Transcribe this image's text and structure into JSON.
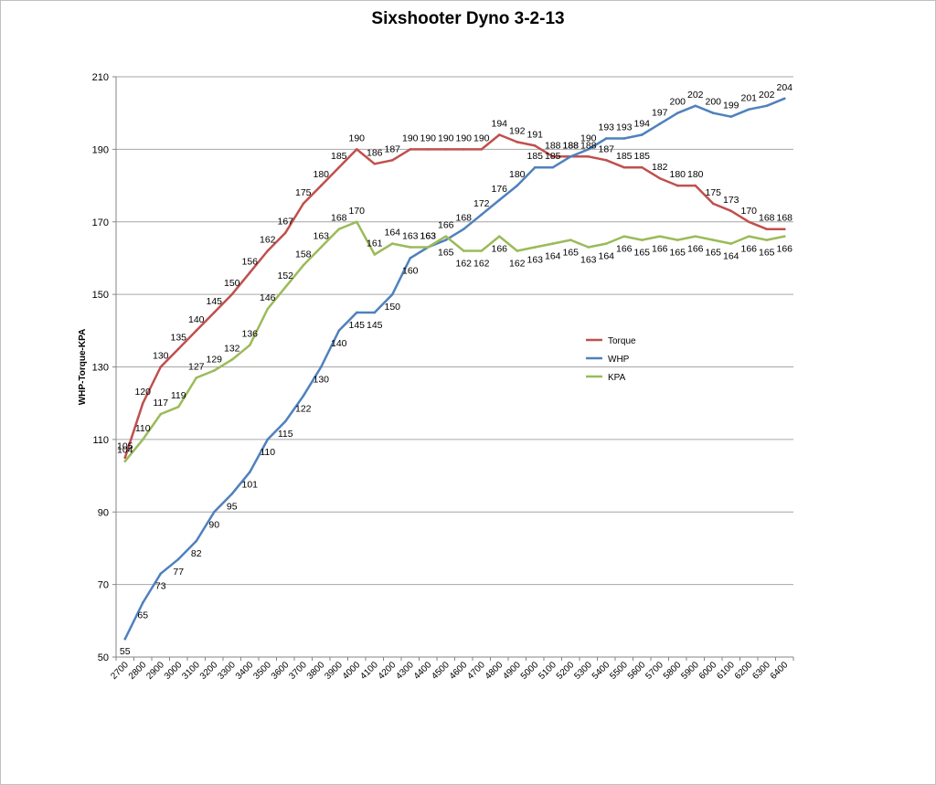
{
  "chart_data": {
    "type": "line",
    "title": "Sixshooter Dyno 3-2-13",
    "xlabel": "",
    "ylabel": "WHP-Torque-KPA",
    "ylim": [
      50,
      210
    ],
    "yticks": [
      50,
      70,
      90,
      110,
      130,
      150,
      170,
      190,
      210
    ],
    "grid": true,
    "legend_position": "right",
    "x": [
      2700,
      2800,
      2900,
      3000,
      3100,
      3200,
      3300,
      3400,
      3500,
      3600,
      3700,
      3800,
      3900,
      4000,
      4100,
      4200,
      4300,
      4400,
      4500,
      4600,
      4700,
      4800,
      4900,
      5000,
      5100,
      5200,
      5300,
      5400,
      5500,
      5600,
      5700,
      5800,
      5900,
      6000,
      6100,
      6200,
      6300,
      6400
    ],
    "series": [
      {
        "name": "Torque",
        "color": "#c0504d",
        "values": [
          105,
          120,
          130,
          135,
          140,
          145,
          150,
          156,
          162,
          167,
          175,
          180,
          185,
          190,
          186,
          187,
          190,
          190,
          190,
          190,
          190,
          194,
          192,
          191,
          188,
          188,
          188,
          187,
          185,
          185,
          182,
          180,
          180,
          175,
          173,
          170,
          168,
          168
        ]
      },
      {
        "name": "WHP",
        "color": "#4f81bd",
        "values": [
          55,
          65,
          73,
          77,
          82,
          90,
          95,
          101,
          110,
          115,
          122,
          130,
          140,
          145,
          145,
          150,
          160,
          163,
          165,
          168,
          172,
          176,
          180,
          185,
          185,
          188,
          190,
          193,
          193,
          194,
          197,
          200,
          202,
          200,
          199,
          201,
          202,
          204
        ]
      },
      {
        "name": "KPA",
        "color": "#9bbb59",
        "values": [
          104,
          110,
          117,
          119,
          127,
          129,
          132,
          136,
          146,
          152,
          158,
          163,
          168,
          170,
          161,
          164,
          163,
          163,
          166,
          162,
          162,
          166,
          162,
          163,
          164,
          165,
          163,
          164,
          166,
          165,
          166,
          165,
          166,
          165,
          164,
          166,
          165,
          166
        ]
      }
    ]
  }
}
